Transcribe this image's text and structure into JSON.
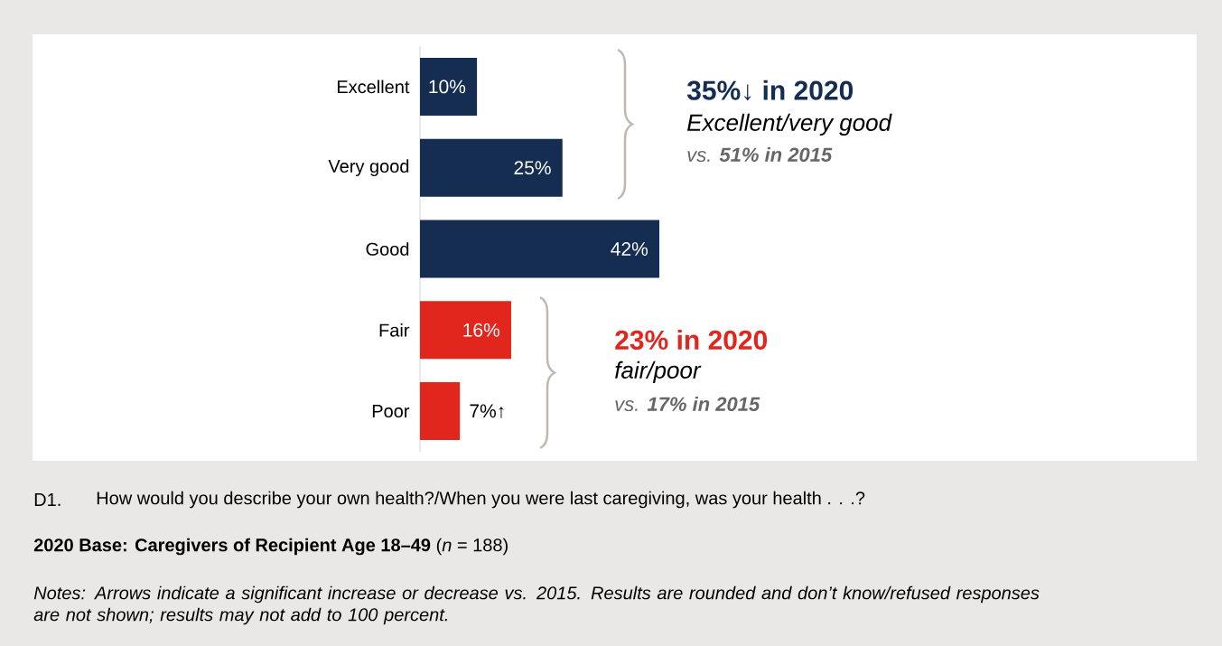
{
  "chart_data": {
    "type": "bar",
    "orientation": "horizontal",
    "tick_labels": "y",
    "categories": [
      "Excellent",
      "Very good",
      "Good",
      "Fair",
      "Poor"
    ],
    "values": [
      10,
      25,
      42,
      16,
      7
    ],
    "value_labels": [
      "10%",
      "25%",
      "42%",
      "16%",
      "7%↑"
    ],
    "colors": [
      "#142d51",
      "#142d51",
      "#142d51",
      "#e0261d",
      "#e0261d"
    ],
    "annotations": [
      "35%↓ in 2020",
      "Excellent/very good",
      "vs. **51% in 2015**",
      "23% in 2020",
      "fair/poor",
      "vs. **17% in 2015**",
      "D1.",
      "How would you describe your own health?/When you were last caregiving, was your health . . .?",
      "**2020 Base: Caregivers of Recipient Age 18–49** (*n* = 188)",
      "Notes: Arrows indicate a significant increase or decrease vs. 2015. Results are rounded and don’t know/refused responses are not shown; results may not add to 100 percent."
    ]
  }
}
